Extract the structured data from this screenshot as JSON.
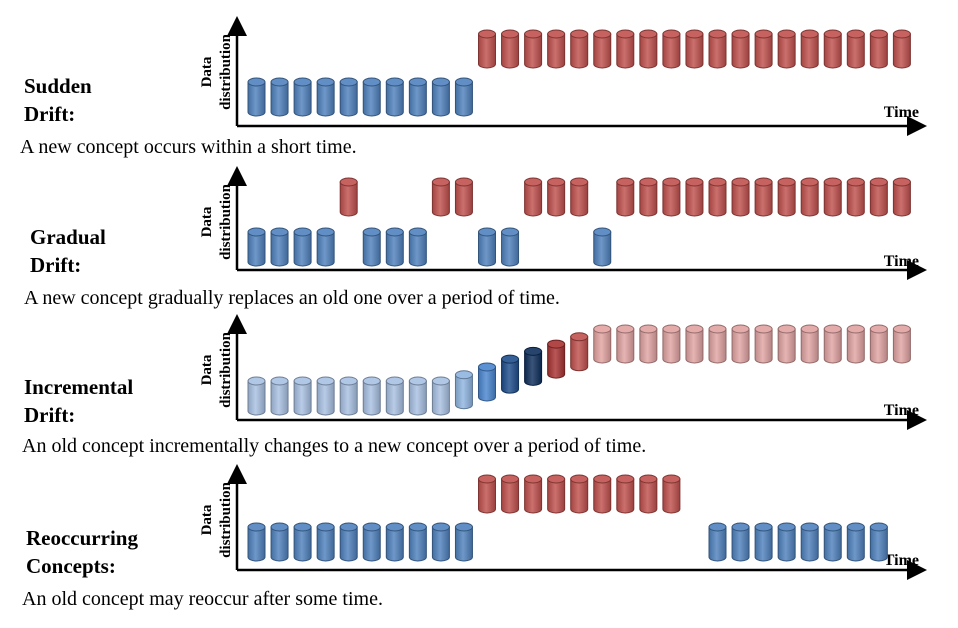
{
  "axis": {
    "y_label_line1": "Data",
    "y_label_line2": "distribution",
    "x_label": "Time"
  },
  "colors": {
    "old_concept": "#4f81bd",
    "new_concept": "#c0504d"
  },
  "panels": [
    {
      "id": "sudden",
      "title_line1": "Sudden",
      "title_line2": "Drift:",
      "description": "A new concept occurs within a short time.",
      "cylinders": [
        {
          "level": "low",
          "concept": "old",
          "count": 10
        },
        {
          "level": "high",
          "concept": "new",
          "count": 19
        }
      ]
    },
    {
      "id": "gradual",
      "title_line1": "Gradual",
      "title_line2": "Drift:",
      "description": "A new concept gradually replaces an old one over a period of time.",
      "sequence": [
        "old",
        "old",
        "old",
        "old",
        "new",
        "old",
        "old",
        "old",
        "new",
        "new",
        "old",
        "old",
        "new",
        "new",
        "new",
        "old",
        "new",
        "new",
        "new",
        "new",
        "new",
        "new",
        "new",
        "new",
        "new",
        "new",
        "new",
        "new",
        "new"
      ]
    },
    {
      "id": "incremental",
      "title_line1": "Incremental",
      "title_line2": "Drift:",
      "description": "An old concept incrementally changes to a new concept over a period of time.",
      "transition": [
        {
          "count": 9,
          "shade": "old-light",
          "level": 0
        },
        {
          "shade": "#8fb5e0",
          "level": 0.12
        },
        {
          "shade": "#4a86cf",
          "level": 0.27
        },
        {
          "shade": "#1f4e8c",
          "level": 0.42
        },
        {
          "shade": "#0f2f5c",
          "level": 0.57
        },
        {
          "shade": "#a83232",
          "level": 0.71
        },
        {
          "shade": "#c0504d",
          "level": 0.85
        },
        {
          "shade": "#e3a3a1",
          "level": 1
        },
        {
          "count": 13,
          "shade": "new-light",
          "level": 1
        }
      ]
    },
    {
      "id": "reoccurring",
      "title_line1": "Reoccurring",
      "title_line2": "Concepts:",
      "description": "An old concept may reoccur after some time.",
      "cylinders": [
        {
          "level": "low",
          "concept": "old",
          "count": 10
        },
        {
          "level": "high",
          "concept": "new",
          "count": 9
        },
        {
          "level": "gap",
          "count": 1
        },
        {
          "level": "low",
          "concept": "old",
          "count": 8
        }
      ]
    }
  ]
}
